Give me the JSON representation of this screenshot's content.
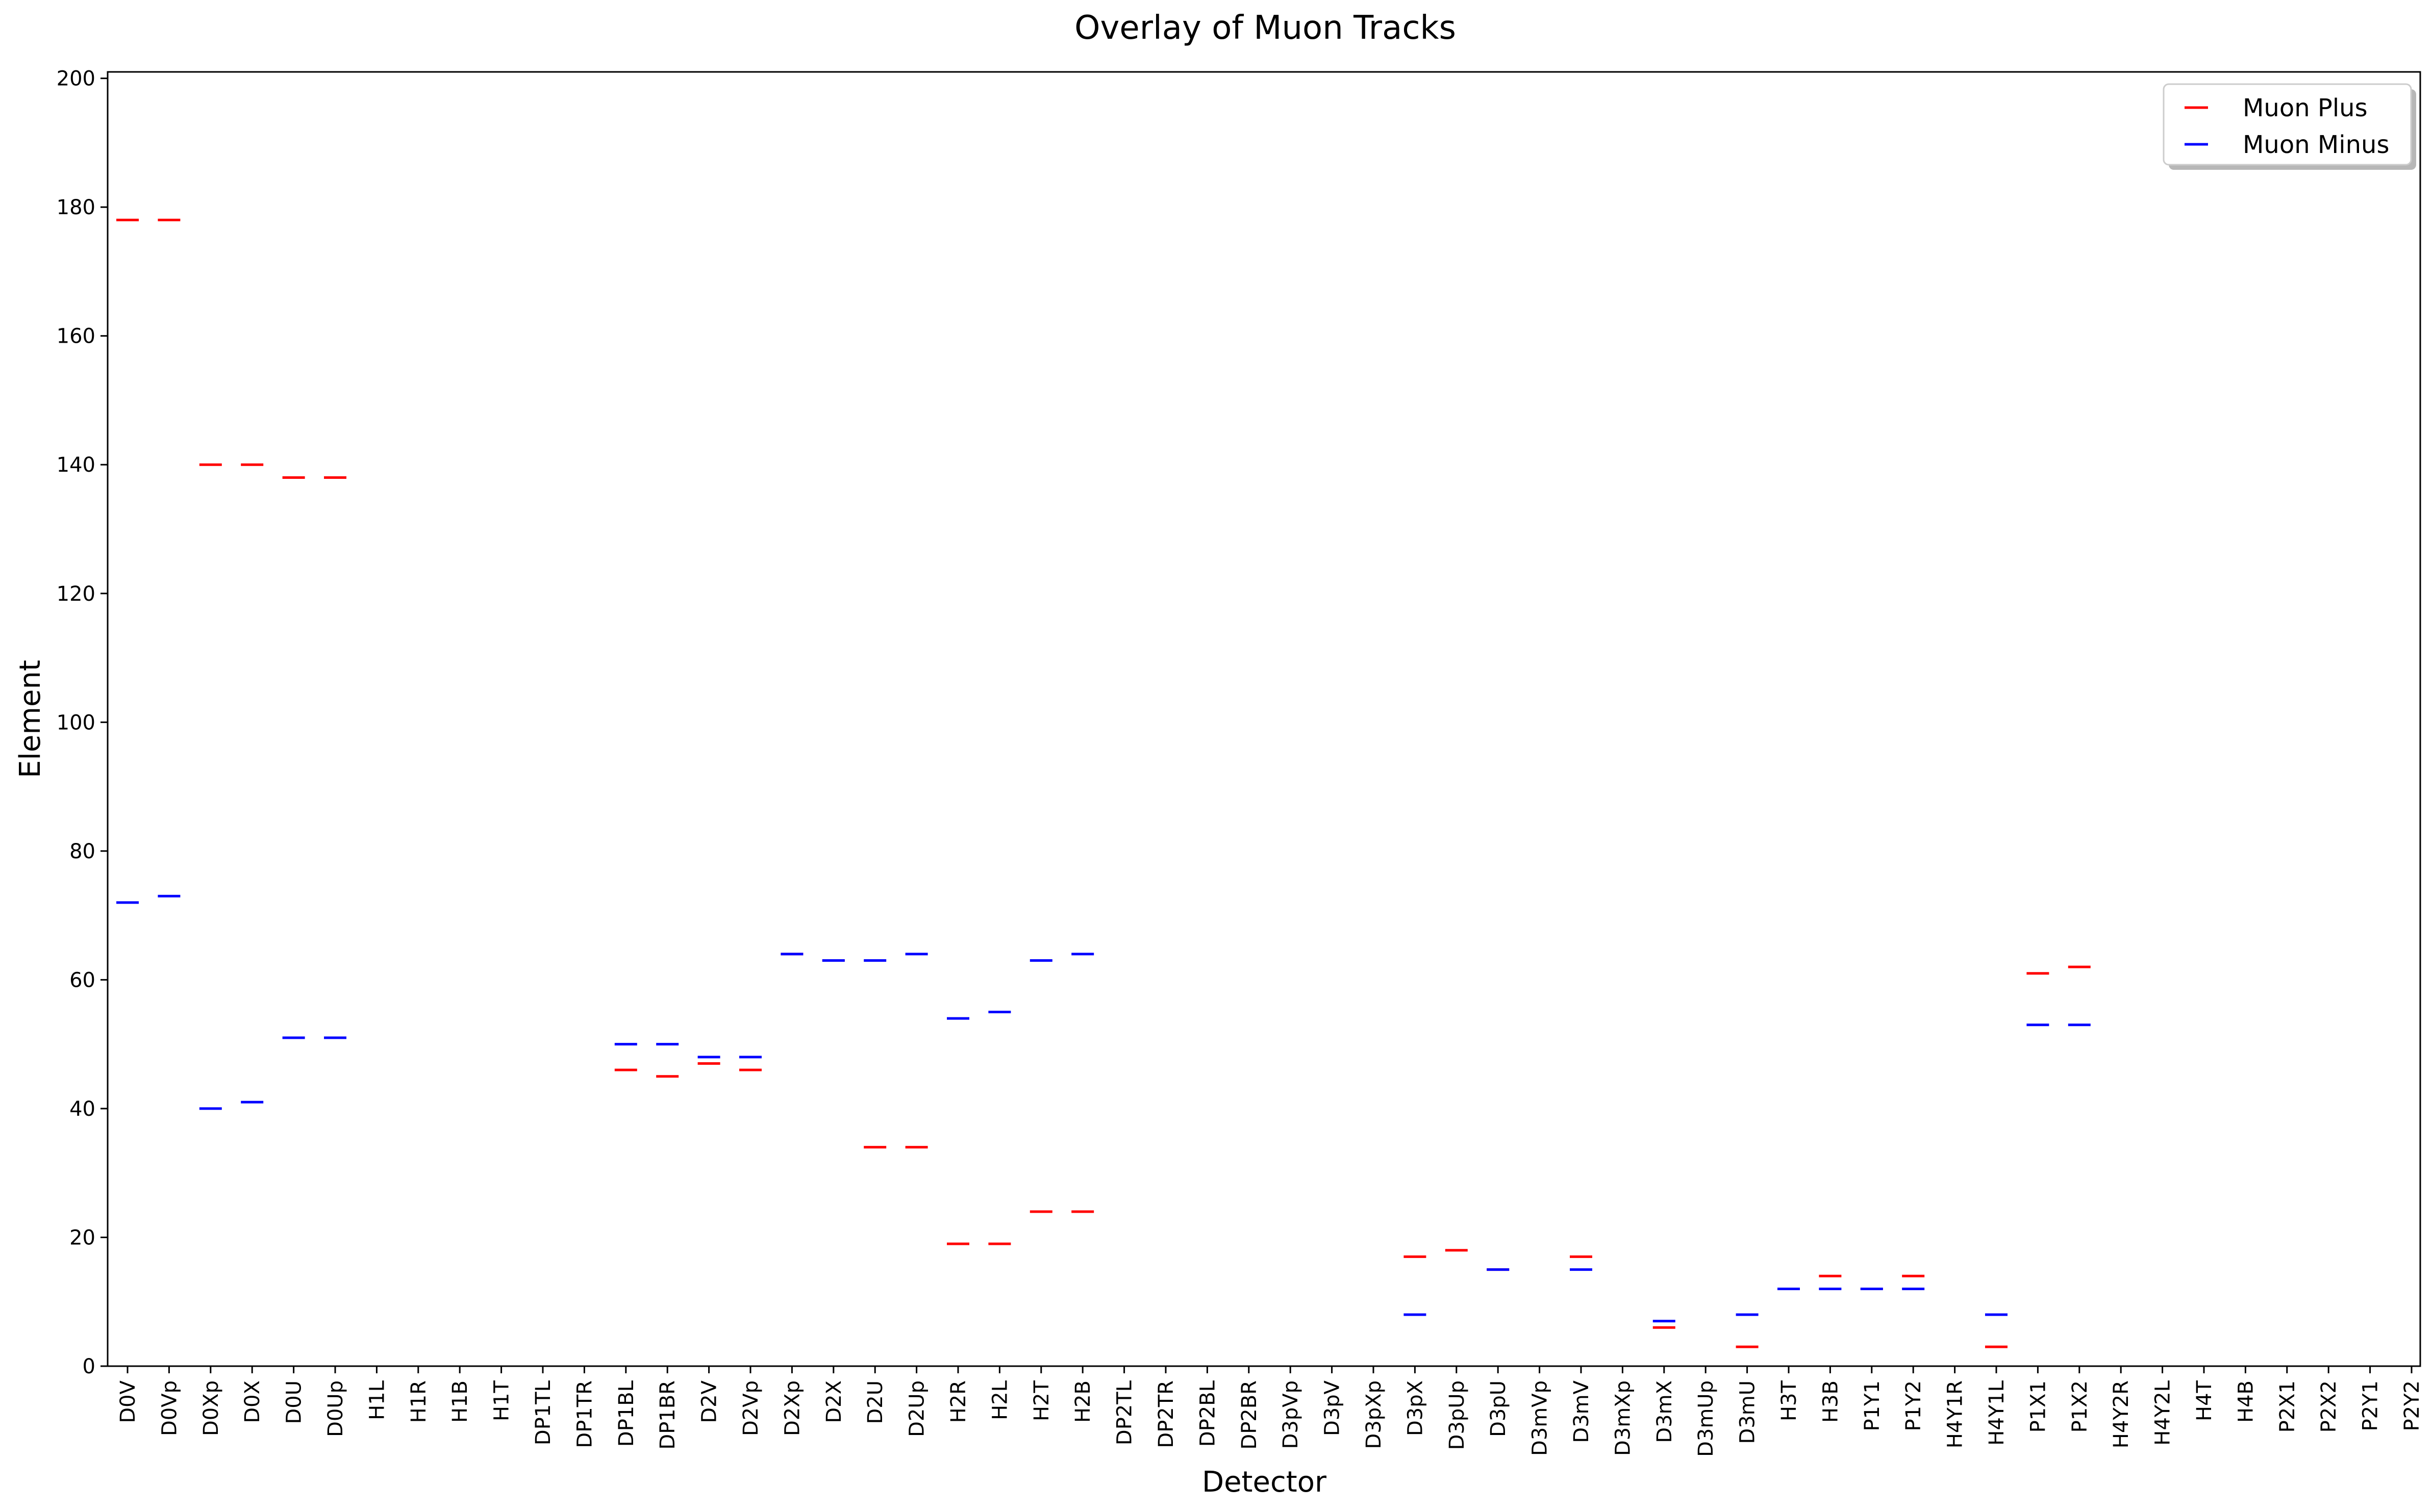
{
  "chart_data": {
    "type": "scatter",
    "title": "Overlay of Muon Tracks",
    "xlabel": "Detector",
    "ylabel": "Element",
    "ylim": [
      0,
      201
    ],
    "yticks": [
      0,
      20,
      40,
      60,
      80,
      100,
      120,
      140,
      160,
      180,
      200
    ],
    "grid": false,
    "legend_position": "top-right",
    "categories": [
      "D0V",
      "D0Vp",
      "D0Xp",
      "D0X",
      "D0U",
      "D0Up",
      "H1L",
      "H1R",
      "H1B",
      "H1T",
      "DP1TL",
      "DP1TR",
      "DP1BL",
      "DP1BR",
      "D2V",
      "D2Vp",
      "D2Xp",
      "D2X",
      "D2U",
      "D2Up",
      "H2R",
      "H2L",
      "H2T",
      "H2B",
      "DP2TL",
      "DP2TR",
      "DP2BL",
      "DP2BR",
      "D3pVp",
      "D3pV",
      "D3pXp",
      "D3pX",
      "D3pUp",
      "D3pU",
      "D3mVp",
      "D3mV",
      "D3mXp",
      "D3mX",
      "D3mUp",
      "D3mU",
      "H3T",
      "H3B",
      "P1Y1",
      "P1Y2",
      "H4Y1R",
      "H4Y1L",
      "P1X1",
      "P1X2",
      "H4Y2R",
      "H4Y2L",
      "H4T",
      "H4B",
      "P2X1",
      "P2X2",
      "P2Y1",
      "P2Y2"
    ],
    "series": [
      {
        "name": "Muon Plus",
        "color": "#ff0000",
        "marker": "hline",
        "points": [
          [
            "D0V",
            178
          ],
          [
            "D0Vp",
            178
          ],
          [
            "D0Xp",
            140
          ],
          [
            "D0X",
            140
          ],
          [
            "D0U",
            138
          ],
          [
            "D0Up",
            138
          ],
          [
            "DP1BL",
            46
          ],
          [
            "DP1BR",
            45
          ],
          [
            "D2V",
            47
          ],
          [
            "D2Vp",
            46
          ],
          [
            "D2Xp",
            64
          ],
          [
            "D2X",
            63
          ],
          [
            "D2U",
            34
          ],
          [
            "D2Up",
            34
          ],
          [
            "H2R",
            19
          ],
          [
            "H2L",
            19
          ],
          [
            "H2T",
            24
          ],
          [
            "H2B",
            24
          ],
          [
            "D3pX",
            17
          ],
          [
            "D3pUp",
            18
          ],
          [
            "D3pU",
            15
          ],
          [
            "D3mV",
            17
          ],
          [
            "D3mX",
            6
          ],
          [
            "D3mU",
            3
          ],
          [
            "H3T",
            12
          ],
          [
            "H3B",
            14
          ],
          [
            "P1Y1",
            12
          ],
          [
            "P1Y2",
            14
          ],
          [
            "H4Y1L",
            3
          ],
          [
            "P1X1",
            61
          ],
          [
            "P1X2",
            62
          ]
        ]
      },
      {
        "name": "Muon Minus",
        "color": "#0000ff",
        "marker": "hline",
        "points": [
          [
            "D0V",
            72
          ],
          [
            "D0Vp",
            73
          ],
          [
            "D0Xp",
            40
          ],
          [
            "D0X",
            41
          ],
          [
            "D0U",
            51
          ],
          [
            "D0Up",
            51
          ],
          [
            "DP1BL",
            50
          ],
          [
            "DP1BR",
            50
          ],
          [
            "D2V",
            48
          ],
          [
            "D2Vp",
            48
          ],
          [
            "D2Xp",
            64
          ],
          [
            "D2X",
            63
          ],
          [
            "D2U",
            63
          ],
          [
            "D2Up",
            64
          ],
          [
            "H2R",
            54
          ],
          [
            "H2L",
            55
          ],
          [
            "H2T",
            63
          ],
          [
            "H2B",
            64
          ],
          [
            "D3pX",
            8
          ],
          [
            "D3pU",
            15
          ],
          [
            "D3mV",
            15
          ],
          [
            "D3mX",
            7
          ],
          [
            "D3mU",
            8
          ],
          [
            "H3T",
            12
          ],
          [
            "H3B",
            12
          ],
          [
            "P1Y1",
            12
          ],
          [
            "P1Y2",
            12
          ],
          [
            "H4Y1L",
            8
          ],
          [
            "P1X1",
            53
          ],
          [
            "P1X2",
            53
          ]
        ]
      }
    ]
  }
}
